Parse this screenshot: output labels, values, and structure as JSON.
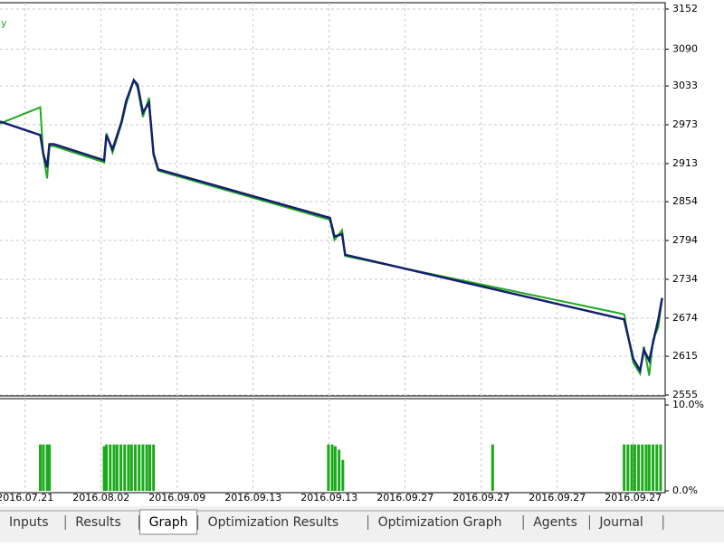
{
  "chart_data": [
    {
      "type": "line",
      "legend_text": "y",
      "x": [
        -3.3,
        2.0,
        2.4,
        2.9,
        3.2,
        3.8,
        10.4,
        10.7,
        11.5,
        12.7,
        13.3,
        14.3,
        14.8,
        15.5,
        16.3,
        16.9,
        17.5,
        40.1,
        40.7,
        41.7,
        42.1,
        78.8,
        80.0,
        80.9,
        81.4,
        82.1,
        82.6,
        83.3,
        83.8
      ],
      "series": [
        {
          "color": "#22a822",
          "values": [
            2975,
            3000,
            2925,
            2890,
            2940,
            2940,
            2915,
            2960,
            2930,
            2975,
            3005,
            3042,
            3030,
            2985,
            3015,
            2925,
            2902,
            2826,
            2795,
            2810,
            2770,
            2680,
            2605,
            2588,
            2630,
            2585,
            2640,
            2660,
            2705
          ]
        },
        {
          "color": "#14206e",
          "values": [
            2978,
            2957,
            2928,
            2907,
            2943,
            2943,
            2918,
            2957,
            2935,
            2978,
            3010,
            3042,
            3035,
            2992,
            3007,
            2928,
            2904,
            2829,
            2800,
            2804,
            2772,
            2672,
            2611,
            2593,
            2625,
            2608,
            2636,
            2672,
            2705
          ]
        }
      ],
      "xlim": [
        -3.3,
        84.2
      ],
      "ylim": [
        2555,
        3152
      ],
      "yticks": [
        2555,
        2615,
        2674,
        2734,
        2794,
        2854,
        2913,
        2973,
        3033,
        3090,
        3152
      ],
      "xticks": [
        {
          "value": 0,
          "label": "2016.07.21"
        },
        {
          "value": 10,
          "label": "2016.08.02"
        },
        {
          "value": 20,
          "label": "2016.09.09"
        },
        {
          "value": 30,
          "label": "2016.09.13"
        },
        {
          "value": 40,
          "label": "2016.09.13"
        },
        {
          "value": 50,
          "label": "2016.09.27"
        },
        {
          "value": 60,
          "label": "2016.09.27"
        },
        {
          "value": 70,
          "label": "2016.09.27"
        },
        {
          "value": 80,
          "label": "2016.09.27"
        }
      ],
      "grid": true
    },
    {
      "type": "bar",
      "color": "#1aaa1a",
      "x": [
        2.0,
        2.4,
        2.9,
        3.2,
        10.4,
        10.7,
        11.2,
        11.7,
        12.1,
        12.6,
        13.1,
        13.6,
        14.0,
        14.5,
        15.0,
        15.5,
        16.0,
        16.4,
        16.9,
        39.9,
        40.4,
        40.8,
        41.3,
        41.8,
        61.5,
        78.8,
        79.3,
        79.8,
        80.2,
        80.7,
        81.2,
        81.7,
        82.1,
        82.6,
        83.1,
        83.6
      ],
      "values": [
        5.4,
        5.4,
        5.4,
        5.4,
        5.2,
        5.4,
        5.4,
        5.4,
        5.4,
        5.4,
        5.4,
        5.4,
        5.4,
        5.4,
        5.4,
        5.4,
        5.4,
        5.4,
        5.4,
        5.4,
        5.4,
        5.2,
        4.8,
        3.6,
        5.4,
        5.4,
        5.4,
        5.4,
        5.4,
        5.4,
        5.4,
        5.4,
        5.4,
        5.4,
        5.4,
        5.4
      ],
      "xlim": [
        -3.3,
        84.2
      ],
      "ylim": [
        0,
        10
      ],
      "yticks": [
        {
          "value": 0,
          "label": "0.0%"
        },
        {
          "value": 10,
          "label": "10.0%"
        }
      ],
      "grid": true
    }
  ],
  "tabs": [
    "Inputs",
    "Results",
    "Graph",
    "Optimization Results",
    "Optimization Graph",
    "Agents",
    "Journal"
  ],
  "active_tab": 2
}
